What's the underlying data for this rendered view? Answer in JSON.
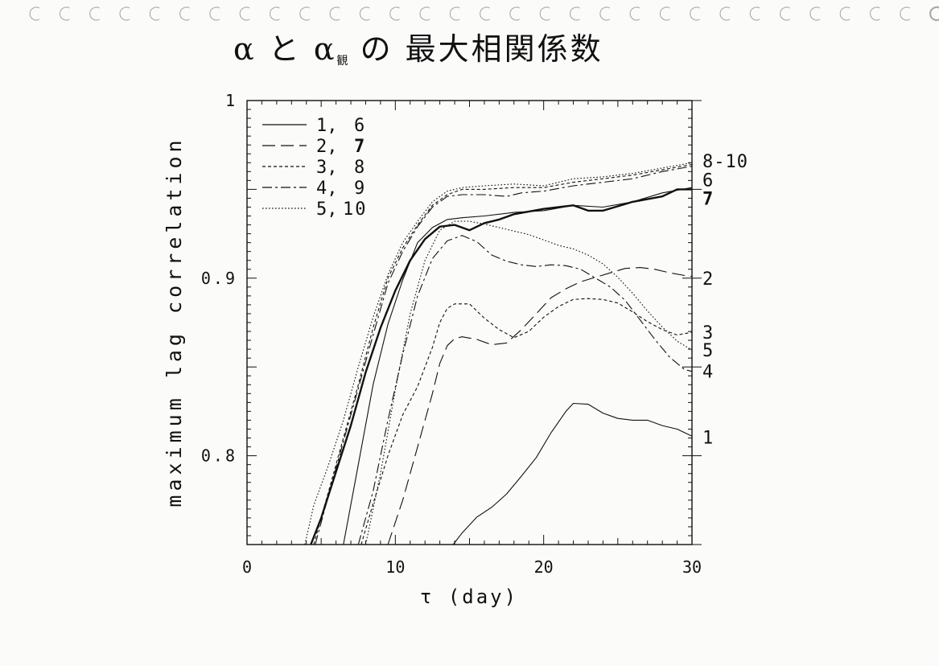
{
  "title": {
    "main_a": "α と α",
    "subscript": "観",
    "main_b": " の 最大相関係数"
  },
  "chart_data": {
    "type": "line",
    "xlabel": "τ (day)",
    "ylabel": "maximum lag correlation",
    "xlim": [
      0,
      30
    ],
    "ylim": [
      0.75,
      1.0
    ],
    "xticks": [
      0,
      10,
      20,
      30
    ],
    "yticks": [
      0.8,
      0.9,
      1
    ],
    "ytick_labels": [
      "0.8",
      "0.9",
      "1"
    ],
    "xtick_labels": [
      "0",
      "10",
      "20",
      "30"
    ],
    "legend_position": "top-left",
    "legend": [
      {
        "label_a": "1,",
        "label_b": "6",
        "bold_b": false,
        "style": "solid"
      },
      {
        "label_a": "2,",
        "label_b": "7",
        "bold_b": true,
        "style": "longdash"
      },
      {
        "label_a": "3,",
        "label_b": "8",
        "bold_b": false,
        "style": "shortdash"
      },
      {
        "label_a": "4,",
        "label_b": "9",
        "bold_b": false,
        "style": "dashdot"
      },
      {
        "label_a": "5,",
        "label_b": "10",
        "bold_b": false,
        "style": "dotted"
      }
    ],
    "right_labels": [
      {
        "text": "8-10",
        "y": 0.966,
        "bold": false
      },
      {
        "text": "6",
        "y": 0.9555,
        "bold": false
      },
      {
        "text": "7",
        "y": 0.945,
        "bold": true
      },
      {
        "text": "2",
        "y": 0.9,
        "bold": false
      },
      {
        "text": "3",
        "y": 0.8695,
        "bold": false
      },
      {
        "text": "5",
        "y": 0.8595,
        "bold": false
      },
      {
        "text": "4",
        "y": 0.8475,
        "bold": false
      },
      {
        "text": "1",
        "y": 0.8105,
        "bold": false
      }
    ],
    "series": [
      {
        "style": "solid",
        "width": 1.1,
        "points": [
          [
            13.9,
            0.75
          ],
          [
            14.5,
            0.7565
          ],
          [
            15.5,
            0.7655
          ],
          [
            16.5,
            0.771
          ],
          [
            17.5,
            0.7785
          ],
          [
            18.5,
            0.7885
          ],
          [
            19.5,
            0.799
          ],
          [
            20.5,
            0.813
          ],
          [
            21.5,
            0.825
          ],
          [
            22.0,
            0.8295
          ],
          [
            23.0,
            0.829
          ],
          [
            24.0,
            0.824
          ],
          [
            25.0,
            0.821
          ],
          [
            26.0,
            0.82
          ],
          [
            27.0,
            0.82
          ],
          [
            28.0,
            0.817
          ],
          [
            29.0,
            0.815
          ],
          [
            30.0,
            0.811
          ]
        ]
      },
      {
        "style": "longdash",
        "width": 1.1,
        "points": [
          [
            9.5,
            0.75
          ],
          [
            10.5,
            0.775
          ],
          [
            11.5,
            0.805
          ],
          [
            12.5,
            0.835
          ],
          [
            13.0,
            0.852
          ],
          [
            13.5,
            0.862
          ],
          [
            14.0,
            0.866
          ],
          [
            14.5,
            0.867
          ],
          [
            15.5,
            0.8655
          ],
          [
            16.5,
            0.8625
          ],
          [
            17.5,
            0.8635
          ],
          [
            18.5,
            0.871
          ],
          [
            19.5,
            0.88
          ],
          [
            20.5,
            0.889
          ],
          [
            21.5,
            0.894
          ],
          [
            22.5,
            0.898
          ],
          [
            23.5,
            0.9005
          ],
          [
            24.5,
            0.903
          ],
          [
            25.5,
            0.9055
          ],
          [
            26.5,
            0.906
          ],
          [
            27.5,
            0.905
          ],
          [
            28.5,
            0.903
          ],
          [
            29.5,
            0.9015
          ],
          [
            30.0,
            0.901
          ]
        ]
      },
      {
        "style": "shortdash",
        "width": 1.1,
        "points": [
          [
            7.7,
            0.75
          ],
          [
            8.5,
            0.773
          ],
          [
            9.5,
            0.8
          ],
          [
            10.5,
            0.823
          ],
          [
            11.5,
            0.839
          ],
          [
            12.5,
            0.861
          ],
          [
            13.0,
            0.875
          ],
          [
            13.5,
            0.883
          ],
          [
            14.0,
            0.8855
          ],
          [
            15.0,
            0.8855
          ],
          [
            16.0,
            0.8775
          ],
          [
            17.0,
            0.871
          ],
          [
            18.0,
            0.8665
          ],
          [
            19.0,
            0.87
          ],
          [
            20.0,
            0.878
          ],
          [
            21.0,
            0.884
          ],
          [
            22.0,
            0.888
          ],
          [
            23.0,
            0.8885
          ],
          [
            24.0,
            0.888
          ],
          [
            25.0,
            0.886
          ],
          [
            26.0,
            0.881
          ],
          [
            27.0,
            0.8755
          ],
          [
            28.0,
            0.871
          ],
          [
            29.0,
            0.868
          ],
          [
            30.0,
            0.8695
          ]
        ]
      },
      {
        "style": "dashdot",
        "width": 1.1,
        "points": [
          [
            7.5,
            0.75
          ],
          [
            8.5,
            0.78
          ],
          [
            9.5,
            0.82
          ],
          [
            10.5,
            0.857
          ],
          [
            11.5,
            0.89
          ],
          [
            12.5,
            0.911
          ],
          [
            13.5,
            0.921
          ],
          [
            14.5,
            0.924
          ],
          [
            15.5,
            0.9205
          ],
          [
            16.5,
            0.913
          ],
          [
            17.5,
            0.9095
          ],
          [
            18.5,
            0.9075
          ],
          [
            19.5,
            0.9065
          ],
          [
            20.5,
            0.9075
          ],
          [
            21.5,
            0.907
          ],
          [
            22.5,
            0.905
          ],
          [
            23.5,
            0.9
          ],
          [
            24.5,
            0.895
          ],
          [
            25.5,
            0.8875
          ],
          [
            26.5,
            0.8765
          ],
          [
            27.5,
            0.8655
          ],
          [
            28.5,
            0.8555
          ],
          [
            29.5,
            0.8485
          ],
          [
            30.0,
            0.8475
          ]
        ]
      },
      {
        "style": "dotted",
        "width": 1.1,
        "points": [
          [
            8.0,
            0.75
          ],
          [
            9.0,
            0.79
          ],
          [
            10.0,
            0.837
          ],
          [
            11.0,
            0.88
          ],
          [
            12.0,
            0.91
          ],
          [
            13.0,
            0.927
          ],
          [
            14.0,
            0.932
          ],
          [
            15.0,
            0.932
          ],
          [
            16.0,
            0.9305
          ],
          [
            17.0,
            0.9285
          ],
          [
            18.0,
            0.9265
          ],
          [
            19.0,
            0.9245
          ],
          [
            20.0,
            0.9215
          ],
          [
            21.0,
            0.9185
          ],
          [
            22.0,
            0.9165
          ],
          [
            23.0,
            0.913
          ],
          [
            24.0,
            0.908
          ],
          [
            25.0,
            0.9005
          ],
          [
            26.0,
            0.8915
          ],
          [
            27.0,
            0.8815
          ],
          [
            28.0,
            0.8725
          ],
          [
            29.0,
            0.8645
          ],
          [
            30.0,
            0.8595
          ]
        ]
      },
      {
        "style": "solid",
        "width": 1.1,
        "points": [
          [
            6.5,
            0.75
          ],
          [
            7.5,
            0.795
          ],
          [
            8.5,
            0.84
          ],
          [
            9.5,
            0.874
          ],
          [
            10.5,
            0.899
          ],
          [
            11.5,
            0.92
          ],
          [
            12.5,
            0.9285
          ],
          [
            13.5,
            0.933
          ],
          [
            14.5,
            0.934
          ],
          [
            16.0,
            0.935
          ],
          [
            18.0,
            0.937
          ],
          [
            20.0,
            0.938
          ],
          [
            22.0,
            0.941
          ],
          [
            24.0,
            0.94
          ],
          [
            26.0,
            0.943
          ],
          [
            28.0,
            0.948
          ],
          [
            30.0,
            0.951
          ]
        ]
      },
      {
        "style": "solid",
        "width": 2.4,
        "points": [
          [
            4.3,
            0.75
          ],
          [
            5.0,
            0.765
          ],
          [
            6.0,
            0.791
          ],
          [
            7.0,
            0.817
          ],
          [
            8.0,
            0.847
          ],
          [
            9.0,
            0.872
          ],
          [
            10.0,
            0.893
          ],
          [
            11.0,
            0.91
          ],
          [
            12.0,
            0.922
          ],
          [
            13.0,
            0.929
          ],
          [
            14.0,
            0.93
          ],
          [
            15.0,
            0.927
          ],
          [
            16.0,
            0.931
          ],
          [
            17.0,
            0.933
          ],
          [
            18.0,
            0.936
          ],
          [
            20.0,
            0.939
          ],
          [
            22.0,
            0.941
          ],
          [
            23.0,
            0.938
          ],
          [
            24.0,
            0.938
          ],
          [
            26.0,
            0.943
          ],
          [
            28.0,
            0.946
          ],
          [
            29.0,
            0.95
          ],
          [
            30.0,
            0.95
          ]
        ]
      },
      {
        "style": "shortdash",
        "width": 1.1,
        "points": [
          [
            4.5,
            0.75
          ],
          [
            5.5,
            0.78
          ],
          [
            6.5,
            0.81
          ],
          [
            7.5,
            0.84
          ],
          [
            8.5,
            0.872
          ],
          [
            9.5,
            0.9
          ],
          [
            10.5,
            0.917
          ],
          [
            11.5,
            0.93
          ],
          [
            12.5,
            0.941
          ],
          [
            13.5,
            0.947
          ],
          [
            14.5,
            0.95
          ],
          [
            16.0,
            0.95
          ],
          [
            18.0,
            0.951
          ],
          [
            20.0,
            0.951
          ],
          [
            22.0,
            0.954
          ],
          [
            24.0,
            0.956
          ],
          [
            26.0,
            0.958
          ],
          [
            28.0,
            0.961
          ],
          [
            30.0,
            0.964
          ]
        ]
      },
      {
        "style": "dashdot",
        "width": 1.1,
        "points": [
          [
            4.6,
            0.75
          ],
          [
            5.5,
            0.778
          ],
          [
            6.5,
            0.808
          ],
          [
            7.5,
            0.838
          ],
          [
            8.5,
            0.868
          ],
          [
            9.5,
            0.897
          ],
          [
            10.5,
            0.915
          ],
          [
            11.5,
            0.929
          ],
          [
            12.5,
            0.94
          ],
          [
            13.5,
            0.946
          ],
          [
            14.5,
            0.947
          ],
          [
            16.0,
            0.947
          ],
          [
            17.5,
            0.946
          ],
          [
            18.5,
            0.948
          ],
          [
            20.0,
            0.949
          ],
          [
            22.0,
            0.952
          ],
          [
            24.0,
            0.954
          ],
          [
            26.0,
            0.956
          ],
          [
            28.0,
            0.96
          ],
          [
            30.0,
            0.963
          ]
        ]
      },
      {
        "style": "dotted",
        "width": 1.1,
        "points": [
          [
            3.9,
            0.75
          ],
          [
            4.5,
            0.772
          ],
          [
            5.5,
            0.795
          ],
          [
            6.5,
            0.82
          ],
          [
            7.5,
            0.85
          ],
          [
            8.5,
            0.878
          ],
          [
            9.5,
            0.902
          ],
          [
            10.5,
            0.92
          ],
          [
            11.5,
            0.932
          ],
          [
            12.5,
            0.943
          ],
          [
            13.5,
            0.949
          ],
          [
            14.5,
            0.951
          ],
          [
            16.0,
            0.952
          ],
          [
            18.0,
            0.953
          ],
          [
            20.0,
            0.952
          ],
          [
            22.0,
            0.956
          ],
          [
            24.0,
            0.957
          ],
          [
            26.0,
            0.959
          ],
          [
            28.0,
            0.962
          ],
          [
            30.0,
            0.965
          ]
        ]
      }
    ]
  }
}
